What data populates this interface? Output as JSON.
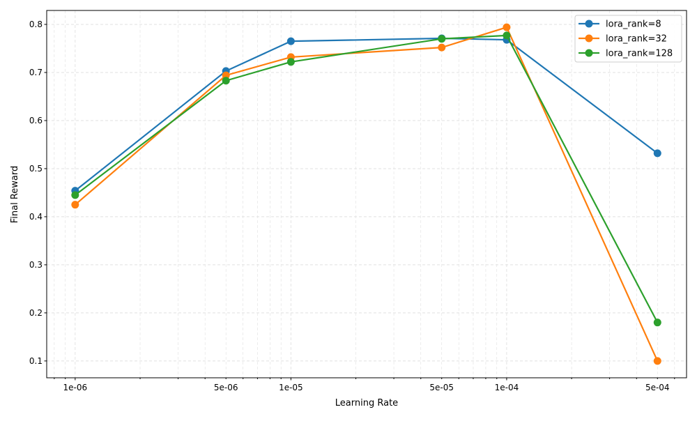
{
  "chart_data": {
    "type": "line",
    "title": "",
    "xlabel": "Learning Rate",
    "ylabel": "Final Reward",
    "xscale": "log",
    "x": [
      1e-06,
      5e-06,
      1e-05,
      5e-05,
      0.0001,
      0.0005
    ],
    "xtick_labels": [
      "1e-06",
      "5e-06",
      "1e-05",
      "5e-05",
      "1e-04",
      "5e-04"
    ],
    "yticks": [
      0.1,
      0.2,
      0.3,
      0.4,
      0.5,
      0.6,
      0.7,
      0.8
    ],
    "ytick_labels": [
      "0.1",
      "0.2",
      "0.3",
      "0.4",
      "0.5",
      "0.6",
      "0.7",
      "0.8"
    ],
    "xlim": [
      7.38e-07,
      0.000682
    ],
    "ylim": [
      0.065,
      0.829
    ],
    "grid": true,
    "legend_position": "top-right",
    "series": [
      {
        "name": "lora_rank=8",
        "color": "#1f77b4",
        "values": [
          0.454,
          0.703,
          0.765,
          0.771,
          0.768,
          0.532
        ]
      },
      {
        "name": "lora_rank=32",
        "color": "#ff7f0e",
        "values": [
          0.425,
          0.694,
          0.732,
          0.752,
          0.794,
          0.1
        ]
      },
      {
        "name": "lora_rank=128",
        "color": "#2ca02c",
        "values": [
          0.445,
          0.683,
          0.722,
          0.77,
          0.777,
          0.18
        ]
      }
    ]
  }
}
